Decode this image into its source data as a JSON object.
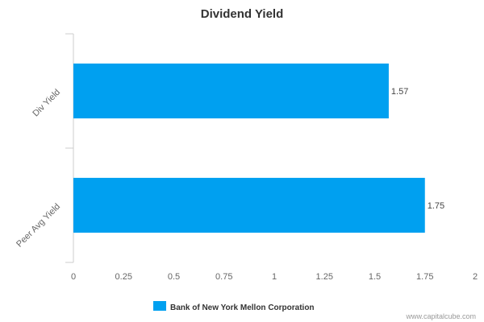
{
  "chart_data": {
    "type": "bar",
    "orientation": "horizontal",
    "title": "Dividend Yield",
    "categories": [
      "Div Yield",
      "Peer Avg Yield"
    ],
    "series": [
      {
        "name": "Bank of New York Mellon Corporation",
        "values": [
          1.57,
          1.75
        ]
      }
    ],
    "xlim": [
      0,
      2
    ],
    "xticks": [
      "0",
      "0.25",
      "0.5",
      "0.75",
      "1",
      "1.25",
      "1.5",
      "1.75",
      "2"
    ],
    "xtick_values": [
      0,
      0.25,
      0.5,
      0.75,
      1,
      1.25,
      1.5,
      1.75,
      2
    ],
    "data_labels": [
      "1.57",
      "1.75"
    ],
    "grid": false,
    "legend_position": "bottom-center",
    "bar_color": "#00a0f0"
  },
  "credit": "www.capitalcube.com"
}
